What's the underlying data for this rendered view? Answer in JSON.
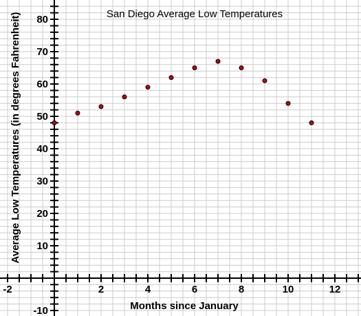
{
  "chart_data": {
    "type": "scatter",
    "title": "San Diego Average Low Temperatures",
    "xlabel": "Months since January",
    "ylabel": "Average Low Temperatures (in degrees Fahrenheit)",
    "xlim": [
      -2,
      13
    ],
    "ylim": [
      -10,
      85
    ],
    "x_ticks": [
      -2,
      2,
      4,
      6,
      8,
      10,
      12
    ],
    "y_ticks": [
      -10,
      10,
      20,
      30,
      40,
      50,
      60,
      70,
      80
    ],
    "x_tick_labels": [
      "-2",
      "2",
      "4",
      "6",
      "8",
      "10",
      "12"
    ],
    "y_tick_labels": [
      "-10",
      "10",
      "20",
      "30",
      "40",
      "50",
      "60",
      "70",
      "80"
    ],
    "x_minor_step": 0.5,
    "y_minor_step": 2,
    "grid": true,
    "point_color": "#c00000",
    "x": [
      0,
      1,
      2,
      3,
      4,
      5,
      6,
      7,
      8,
      9,
      10,
      11
    ],
    "y": [
      48,
      51,
      53,
      56,
      59,
      62,
      65,
      67,
      65,
      61,
      54,
      48
    ]
  }
}
